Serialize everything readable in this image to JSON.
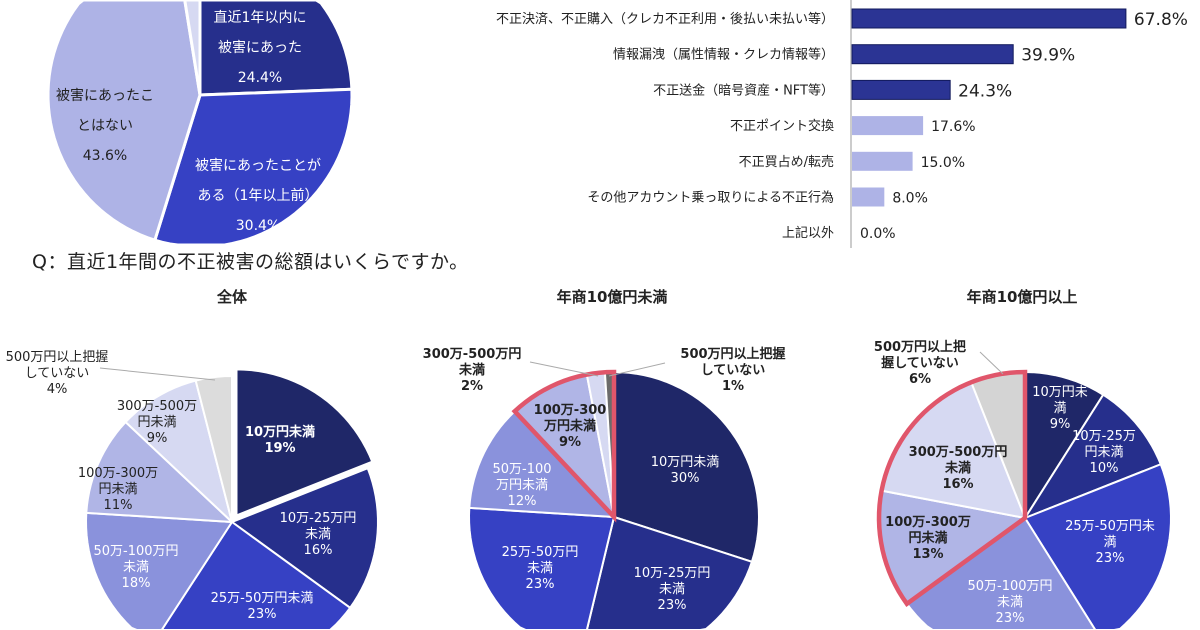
{
  "question": "Q：直近1年間の不正被害の総額はいくらですか。",
  "chart_data": [
    {
      "type": "pie",
      "title": "",
      "slices": [
        {
          "label_lines": [
            "直近1年以内に",
            "被害にあった"
          ],
          "value": 24.4,
          "value_label": "24.4%",
          "color": "#262f8c",
          "text_color": "#ffffff"
        },
        {
          "label_lines": [
            "被害にあったことが",
            "ある（1年以上前）"
          ],
          "value": 30.4,
          "value_label": "30.4%",
          "color": "#3641c4",
          "text_color": "#ffffff"
        },
        {
          "label_lines": [
            "被害にあったこ",
            "とはない"
          ],
          "value": 43.6,
          "value_label": "43.6%",
          "color": "#aeb3e6",
          "text_color": "#222222"
        },
        {
          "label_lines": [],
          "value": 1.6,
          "value_label": "",
          "color": "#d6d9f2",
          "text_color": "#222222"
        }
      ]
    },
    {
      "type": "bar",
      "orientation": "horizontal",
      "categories": [
        "不正決済、不正購入（クレカ不正利用・後払い未払い等）",
        "情報漏洩（属性情報・クレカ情報等）",
        "不正送金（暗号資産・NFT等）",
        "不正ポイント交換",
        "不正買占め/転売",
        "その他アカウント乗っ取りによる不正行為",
        "上記以外"
      ],
      "values": [
        67.8,
        39.9,
        24.3,
        17.6,
        15.0,
        8.0,
        0.0
      ],
      "value_labels": [
        "67.8%",
        "39.9%",
        "24.3%",
        "17.6%",
        "15.0%",
        "8.0%",
        "0.0%"
      ],
      "highlight_top": 3,
      "colors": {
        "highlight": "#2b3494",
        "normal": "#aeb3e6"
      },
      "xlim": [
        0,
        70
      ]
    },
    {
      "type": "pie",
      "title": "全体",
      "slices": [
        {
          "label_lines": [
            "10万円未満"
          ],
          "value": 19,
          "value_label": "19%",
          "color": "#1f2768",
          "text_color": "#ffffff",
          "bold": true,
          "exploded": true
        },
        {
          "label_lines": [
            "10万-25万円",
            "未満"
          ],
          "value": 16,
          "value_label": "16%",
          "color": "#262f8c",
          "text_color": "#ffffff"
        },
        {
          "label_lines": [
            "25万-50万円未満"
          ],
          "value": 23,
          "value_label": "23%",
          "color": "#3641c4",
          "text_color": "#ffffff"
        },
        {
          "label_lines": [
            "50万-100万円",
            "未満"
          ],
          "value": 18,
          "value_label": "18%",
          "color": "#8a92dc",
          "text_color": "#ffffff"
        },
        {
          "label_lines": [
            "100万-300万",
            "円未満"
          ],
          "value": 11,
          "value_label": "11%",
          "color": "#b0b5e6",
          "text_color": "#222222"
        },
        {
          "label_lines": [
            "300万-500万",
            "円未満"
          ],
          "value": 9,
          "value_label": "9%",
          "color": "#d6d9f2",
          "text_color": "#222222"
        },
        {
          "label_lines": [
            "500万円以上把握",
            "していない"
          ],
          "value": 4,
          "value_label": "4%",
          "color": "#dcdcdc",
          "text_color": "#222222",
          "outside": true
        }
      ],
      "highlight_slices": []
    },
    {
      "type": "pie",
      "title": "年商10億円未満",
      "slices": [
        {
          "label_lines": [
            "10万円未満"
          ],
          "value": 30,
          "value_label": "30%",
          "color": "#1f2768",
          "text_color": "#ffffff"
        },
        {
          "label_lines": [
            "10万-25万円",
            "未満"
          ],
          "value": 23,
          "value_label": "23%",
          "color": "#262f8c",
          "text_color": "#ffffff"
        },
        {
          "label_lines": [
            "25万-50万円",
            "未満"
          ],
          "value": 23,
          "value_label": "23%",
          "color": "#3641c4",
          "text_color": "#ffffff"
        },
        {
          "label_lines": [
            "50万-100",
            "万円未満"
          ],
          "value": 12,
          "value_label": "12%",
          "color": "#8a92dc",
          "text_color": "#ffffff"
        },
        {
          "label_lines": [
            "100万-300",
            "万円未満"
          ],
          "value": 9,
          "value_label": "9%",
          "color": "#b0b5e6",
          "text_color": "#222222",
          "bold": true
        },
        {
          "label_lines": [
            "300万-500万円",
            "未満"
          ],
          "value": 2,
          "value_label": "2%",
          "color": "#d6d9f2",
          "text_color": "#222222",
          "outside": true,
          "bold": true
        },
        {
          "label_lines": [
            "500万円以上把握",
            "していない"
          ],
          "value": 1,
          "value_label": "1%",
          "color": "#6b6b6b",
          "text_color": "#222222",
          "outside": true,
          "bold": true
        }
      ],
      "highlight_slices": [
        4,
        5,
        6
      ],
      "highlight_color": "#e0566b"
    },
    {
      "type": "pie",
      "title": "年商10億円以上",
      "slices": [
        {
          "label_lines": [
            "10万円未",
            "満"
          ],
          "value": 9,
          "value_label": "9%",
          "color": "#1f2768",
          "text_color": "#ffffff"
        },
        {
          "label_lines": [
            "10万-25万",
            "円未満"
          ],
          "value": 10,
          "value_label": "10%",
          "color": "#262f8c",
          "text_color": "#ffffff"
        },
        {
          "label_lines": [
            "25万-50万円未",
            "満"
          ],
          "value": 23,
          "value_label": "23%",
          "color": "#3641c4",
          "text_color": "#ffffff"
        },
        {
          "label_lines": [
            "50万-100万円",
            "未満"
          ],
          "value": 23,
          "value_label": "23%",
          "color": "#8a92dc",
          "text_color": "#ffffff"
        },
        {
          "label_lines": [
            "100万-300万",
            "円未満"
          ],
          "value": 13,
          "value_label": "13%",
          "color": "#b0b5e6",
          "text_color": "#222222",
          "bold": true
        },
        {
          "label_lines": [
            "300万-500万円",
            "未満"
          ],
          "value": 16,
          "value_label": "16%",
          "color": "#d6d9f2",
          "text_color": "#222222",
          "bold": true
        },
        {
          "label_lines": [
            "500万円以上把",
            "握していない"
          ],
          "value": 6,
          "value_label": "6%",
          "color": "#d4d4d4",
          "text_color": "#222222",
          "outside": true,
          "bold": true
        }
      ],
      "highlight_slices": [
        4,
        5,
        6
      ],
      "highlight_color": "#e0566b"
    }
  ]
}
